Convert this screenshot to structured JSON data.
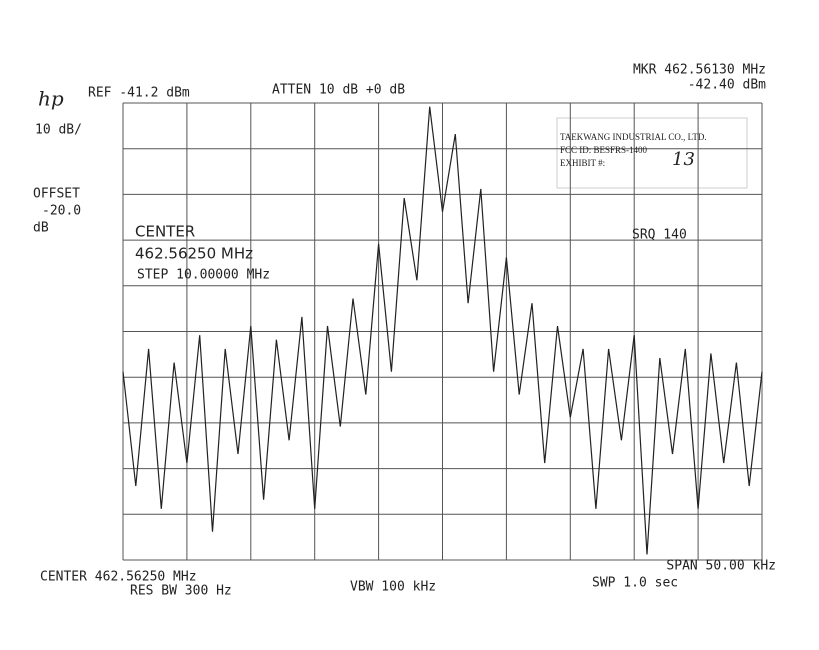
{
  "chart_data": {
    "type": "line",
    "logo": "hp",
    "ref": "REF -41.2 dBm",
    "atten": "ATTEN 10 dB +0 dB",
    "marker_freq": "MKR 462.56130 MHz",
    "marker_level": "-42.40 dBm",
    "scale": "10 dB/",
    "offset_label": "OFFSET",
    "offset_value": "-20.0",
    "offset_unit": "dB",
    "center_label": "CENTER",
    "center_value": "462.56250 MHz",
    "step": "STEP 10.00000 MHz",
    "srq": "SRQ 140",
    "stamp": [
      "TAEKWANG INDUSTRIAL CO., LTD.",
      "FCC ID:  BESFRS-1400",
      "EXHIBIT #:"
    ],
    "exhibit_number": "13",
    "center_footer": "CENTER 462.56250 MHz",
    "res_bw": "RES BW 300 Hz",
    "vbw": "VBW 100 kHz",
    "span": "SPAN 50.00 kHz",
    "sweep": "SWP 1.0  sec",
    "xlim": [
      462.5375,
      462.5875
    ],
    "ylim": [
      -141.2,
      -41.2
    ],
    "color": "#222222",
    "x": [
      462.5375,
      462.5385,
      462.5395,
      462.5405,
      462.5415,
      462.5425,
      462.5435,
      462.5445,
      462.5455,
      462.5465,
      462.5475,
      462.5485,
      462.5495,
      462.5505,
      462.5515,
      462.5525,
      462.5535,
      462.5545,
      462.5555,
      462.5565,
      462.5575,
      462.5585,
      462.5595,
      462.5605,
      462.5615,
      462.5625,
      462.5635,
      462.5645,
      462.5655,
      462.5665,
      462.5675,
      462.5685,
      462.5695,
      462.5705,
      462.5715,
      462.5725,
      462.5735,
      462.5745,
      462.5755,
      462.5765,
      462.5775,
      462.5785,
      462.5795,
      462.5805,
      462.5815,
      462.5825,
      462.5835,
      462.5845,
      462.5855,
      462.5865,
      462.5875
    ],
    "values": [
      -100,
      -125,
      -95,
      -130,
      -98,
      -120,
      -92,
      -135,
      -95,
      -118,
      -90,
      -128,
      -93,
      -115,
      -88,
      -130,
      -90,
      -112,
      -84,
      -105,
      -72,
      -100,
      -62,
      -80,
      -42,
      -65,
      -48,
      -85,
      -60,
      -100,
      -75,
      -105,
      -85,
      -120,
      -90,
      -110,
      -95,
      -130,
      -95,
      -115,
      -92,
      -140,
      -97,
      -118,
      -95,
      -130,
      -96,
      -120,
      -98,
      -125,
      -100
    ]
  }
}
